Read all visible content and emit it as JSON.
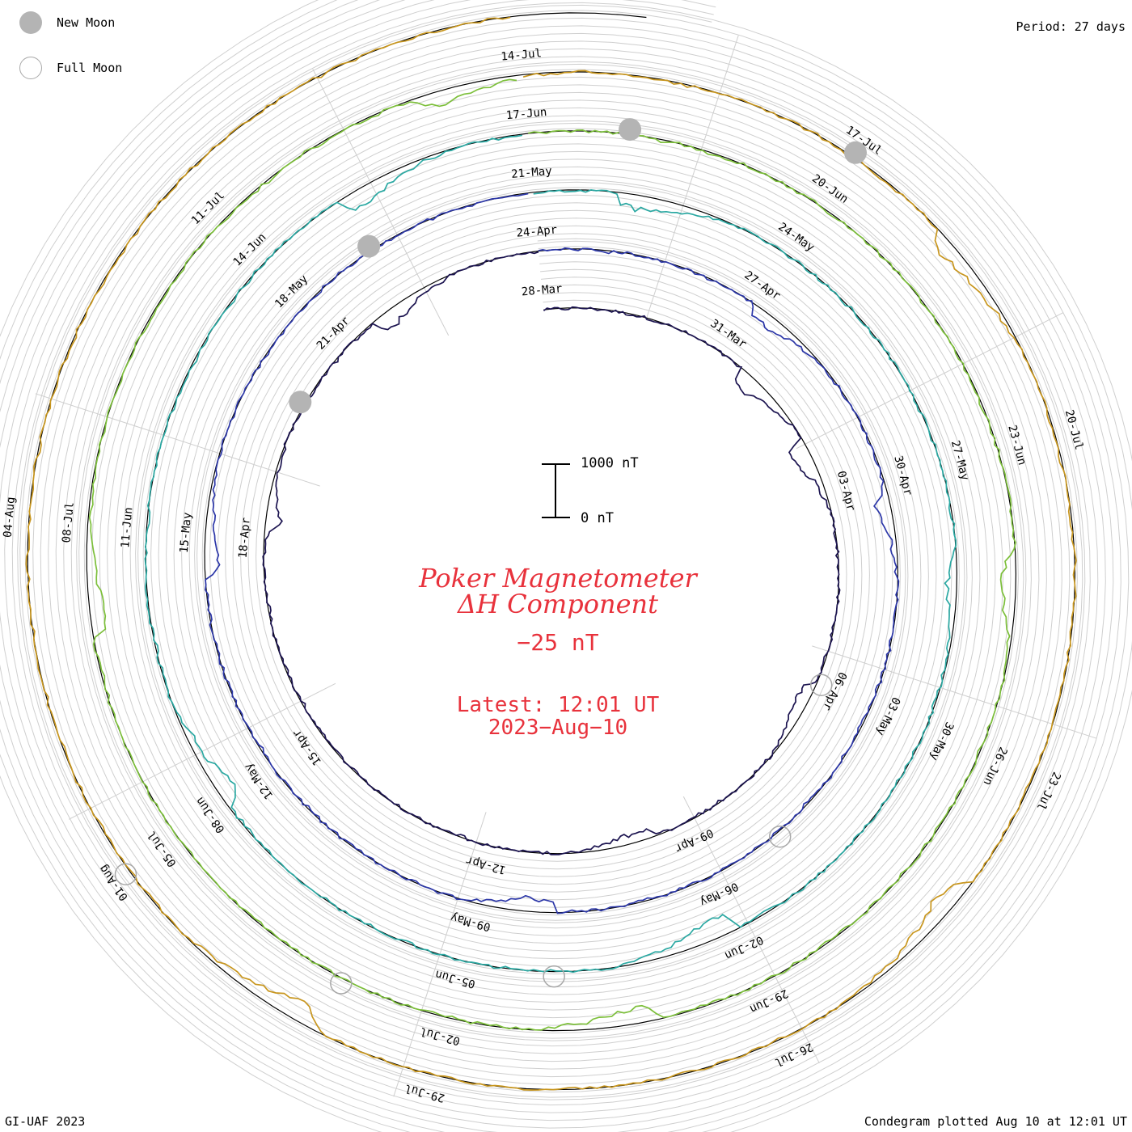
{
  "legend": {
    "new_moon": "New Moon",
    "full_moon": "Full Moon"
  },
  "period": "Period: 27 days",
  "footer": {
    "left": "GI-UAF 2023",
    "right": "Condegram plotted Aug 10 at 12:01 UT"
  },
  "title": {
    "line1": "Poker Magnetometer",
    "line2": "ΔH Component",
    "current_value": "−25 nT",
    "latest": "Latest: 12:01 UT",
    "date": "2023−Aug−10"
  },
  "scale_bar": {
    "top_label": "1000 nT",
    "bottom_label": "0 nT"
  },
  "chart_data": {
    "type": "line",
    "chart_kind": "spiral condegram",
    "period_days": 27,
    "scale_nT": [
      0,
      1000
    ],
    "current_value_nT": -25,
    "turns": [
      {
        "start": "2023-03-28",
        "color": "#1c1450",
        "date_labels": [
          "28-Mar",
          "31-Mar",
          "03-Apr",
          "06-Apr",
          "09-Apr",
          "12-Apr",
          "15-Apr",
          "18-Apr",
          "21-Apr"
        ]
      },
      {
        "start": "2023-04-24",
        "color": "#2c37a8",
        "date_labels": [
          "24-Apr",
          "27-Apr",
          "30-Apr",
          "03-May",
          "06-May",
          "09-May",
          "12-May",
          "15-May",
          "18-May"
        ]
      },
      {
        "start": "2023-05-21",
        "color": "#2aa8a2",
        "date_labels": [
          "21-May",
          "24-May",
          "27-May",
          "30-May",
          "02-Jun",
          "05-Jun",
          "08-Jun",
          "11-Jun",
          "14-Jun"
        ]
      },
      {
        "start": "2023-06-17",
        "color": "#7cbf3a",
        "date_labels": [
          "17-Jun",
          "20-Jun",
          "23-Jun",
          "26-Jun",
          "29-Jun",
          "02-Jul",
          "05-Jul",
          "08-Jul",
          "11-Jul"
        ]
      },
      {
        "start": "2023-07-14",
        "color": "#c8961e",
        "date_labels": [
          "14-Jul",
          "17-Jul",
          "20-Jul",
          "23-Jul",
          "26-Jul",
          "29-Jul",
          "01-Aug",
          "04-Aug"
        ]
      }
    ],
    "new_moons": [
      "2023-04-20",
      "2023-05-19",
      "2023-06-18",
      "2023-07-17"
    ],
    "full_moons": [
      "2023-04-06",
      "2023-05-05",
      "2023-06-04",
      "2023-07-03",
      "2023-08-01"
    ]
  }
}
